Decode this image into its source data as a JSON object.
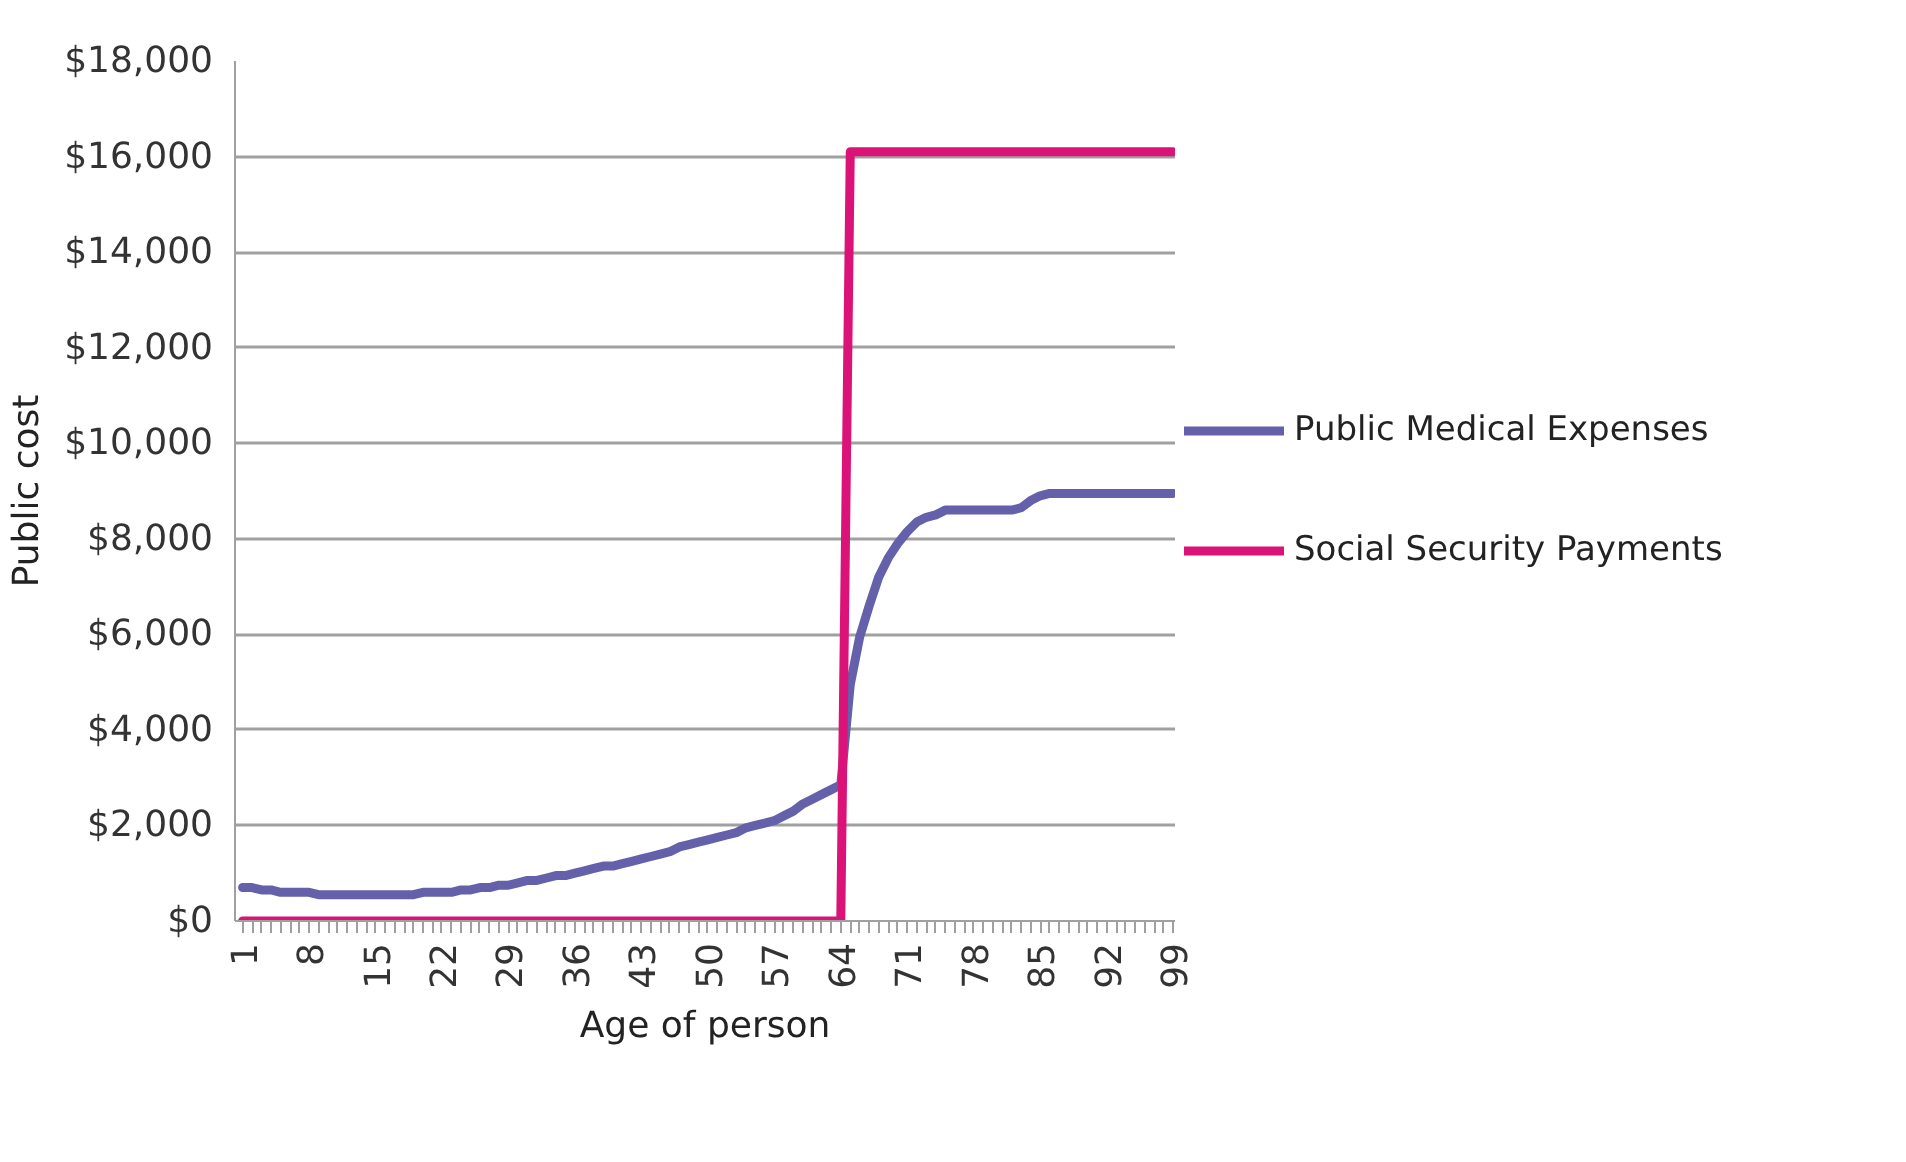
{
  "chart_data": {
    "type": "line",
    "xlabel": "Age of person",
    "ylabel": "Public cost",
    "categories": [
      "1",
      null,
      null,
      null,
      null,
      null,
      null,
      "8",
      null,
      null,
      null,
      null,
      null,
      null,
      "15",
      null,
      null,
      null,
      null,
      null,
      null,
      "22",
      null,
      null,
      null,
      null,
      null,
      null,
      "29",
      null,
      null,
      null,
      null,
      null,
      null,
      "36",
      null,
      null,
      null,
      null,
      null,
      null,
      "43",
      null,
      null,
      null,
      null,
      null,
      null,
      "50",
      null,
      null,
      null,
      null,
      null,
      null,
      "57",
      null,
      null,
      null,
      null,
      null,
      null,
      "64",
      null,
      null,
      null,
      null,
      null,
      null,
      "71",
      null,
      null,
      null,
      null,
      null,
      null,
      "78",
      null,
      null,
      null,
      null,
      null,
      null,
      "85",
      null,
      null,
      null,
      null,
      null,
      null,
      "92",
      null,
      null,
      null,
      null,
      null,
      null,
      "99"
    ],
    "series": [
      {
        "name": "Public Medical Expenses",
        "color": "#6460aa",
        "values": [
          700,
          700,
          650,
          650,
          600,
          600,
          600,
          600,
          550,
          550,
          550,
          550,
          550,
          550,
          550,
          550,
          550,
          550,
          550,
          600,
          600,
          600,
          600,
          650,
          650,
          700,
          700,
          750,
          750,
          800,
          850,
          850,
          900,
          950,
          950,
          1000,
          1050,
          1100,
          1150,
          1150,
          1200,
          1250,
          1300,
          1350,
          1400,
          1450,
          1550,
          1600,
          1650,
          1700,
          1750,
          1800,
          1850,
          1950,
          2000,
          2050,
          2100,
          2200,
          2300,
          2450,
          2550,
          2650,
          2750,
          2850,
          4950,
          5950,
          6600,
          7200,
          7600,
          7900,
          8150,
          8350,
          8450,
          8500,
          8600,
          8600,
          8600,
          8600,
          8600,
          8600,
          8600,
          8600,
          8650,
          8800,
          8900,
          8950,
          8950,
          8950,
          8950,
          8950,
          8950,
          8950,
          8950,
          8950,
          8950,
          8950,
          8950,
          8950,
          8950
        ]
      },
      {
        "name": "Social Security Payments",
        "color": "#db1278",
        "values": [
          0,
          0,
          0,
          0,
          0,
          0,
          0,
          0,
          0,
          0,
          0,
          0,
          0,
          0,
          0,
          0,
          0,
          0,
          0,
          0,
          0,
          0,
          0,
          0,
          0,
          0,
          0,
          0,
          0,
          0,
          0,
          0,
          0,
          0,
          0,
          0,
          0,
          0,
          0,
          0,
          0,
          0,
          0,
          0,
          0,
          0,
          0,
          0,
          0,
          0,
          0,
          0,
          0,
          0,
          0,
          0,
          0,
          0,
          0,
          0,
          0,
          0,
          0,
          0,
          16100,
          16100,
          16100,
          16100,
          16100,
          16100,
          16100,
          16100,
          16100,
          16100,
          16100,
          16100,
          16100,
          16100,
          16100,
          16100,
          16100,
          16100,
          16100,
          16100,
          16100,
          16100,
          16100,
          16100,
          16100,
          16100,
          16100,
          16100,
          16100,
          16100,
          16100,
          16100,
          16100,
          16100,
          16100
        ]
      }
    ],
    "ylim": [
      0,
      18000
    ],
    "yticks": [
      {
        "value": 0,
        "label": "$0"
      },
      {
        "value": 2000,
        "label": "$2,000"
      },
      {
        "value": 4000,
        "label": "$4,000"
      },
      {
        "value": 6000,
        "label": "$6,000"
      },
      {
        "value": 8000,
        "label": "$8,000"
      },
      {
        "value": 10000,
        "label": "$10,000"
      },
      {
        "value": 12000,
        "label": "$12,000"
      },
      {
        "value": 14000,
        "label": "$14,000"
      },
      {
        "value": 16000,
        "label": "$16,000"
      },
      {
        "value": 18000,
        "label": "$18,000"
      }
    ],
    "grid": "y",
    "legend": "right",
    "marker": "none",
    "line_style": "solid"
  }
}
